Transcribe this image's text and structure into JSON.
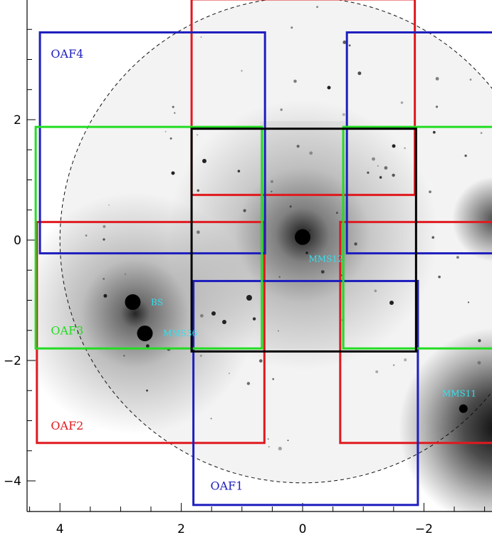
{
  "chart_data": {
    "type": "scatter",
    "title": "",
    "xlabel": "",
    "ylabel": "",
    "xlim": [
      4.7,
      -3.2
    ],
    "ylim": [
      -4.4,
      4.0
    ],
    "x_reversed": true,
    "x_ticks": [
      4,
      2,
      0,
      -2
    ],
    "y_ticks": [
      2,
      0,
      -2,
      -4
    ],
    "x_tick_labels": [
      "4",
      "2",
      "0",
      "−2"
    ],
    "y_tick_labels": [
      "2",
      "0",
      "−2",
      "−4"
    ],
    "grid": false,
    "background": "inverted grayscale sky image",
    "vignetting_circle": {
      "center": [
        0.0,
        0.0
      ],
      "radius": 4.0,
      "style": "dashed"
    },
    "colors": {
      "red": "#e0191e",
      "blue": "#1e1ebe",
      "green": "#22dd22",
      "black": "#000000",
      "cyan": "#33e0ef"
    },
    "fields": [
      {
        "x0": 1.83,
        "x1": -1.85,
        "y0": 0.75,
        "y1": 4.0,
        "color": "red"
      },
      {
        "x0": 4.38,
        "x1": 0.63,
        "y0": -3.37,
        "y1": 0.3,
        "color": "red",
        "label": "OAF2",
        "label_at": [
          4.15,
          -3.15
        ]
      },
      {
        "x0": -0.62,
        "x1": -3.2,
        "y0": -3.37,
        "y1": 0.3,
        "color": "red"
      },
      {
        "x0": 4.33,
        "x1": 0.62,
        "y0": -0.22,
        "y1": 3.45,
        "color": "blue",
        "label": "OAF4",
        "label_at": [
          4.15,
          3.03
        ]
      },
      {
        "x0": -0.73,
        "x1": -3.2,
        "y0": -0.22,
        "y1": 3.45,
        "color": "blue"
      },
      {
        "x0": 1.8,
        "x1": -1.9,
        "y0": -4.4,
        "y1": -0.68,
        "color": "blue",
        "label": "OAF1",
        "label_at": [
          1.52,
          -4.15
        ]
      },
      {
        "x0": 4.4,
        "x1": 0.67,
        "y0": -1.8,
        "y1": 1.88,
        "color": "green",
        "label": "OAF3",
        "label_at": [
          4.15,
          -1.57
        ]
      },
      {
        "x0": -0.67,
        "x1": -3.2,
        "y0": -1.8,
        "y1": 1.88,
        "color": "green"
      },
      {
        "x0": 1.83,
        "x1": -1.87,
        "y0": -1.85,
        "y1": 1.85,
        "color": "black"
      }
    ],
    "sources": [
      {
        "name": "MMS12",
        "x": 0.0,
        "y": 0.05,
        "label_at": [
          -0.1,
          -0.36
        ]
      },
      {
        "name": "BS",
        "x": 2.8,
        "y": -1.03,
        "label_at": [
          2.5,
          -1.08
        ]
      },
      {
        "name": "MMS36",
        "x": 2.6,
        "y": -1.55,
        "label_at": [
          2.3,
          -1.6
        ]
      },
      {
        "name": "MMS11",
        "x": -2.65,
        "y": -2.8,
        "label_at": [
          -2.3,
          -2.6
        ]
      }
    ]
  }
}
